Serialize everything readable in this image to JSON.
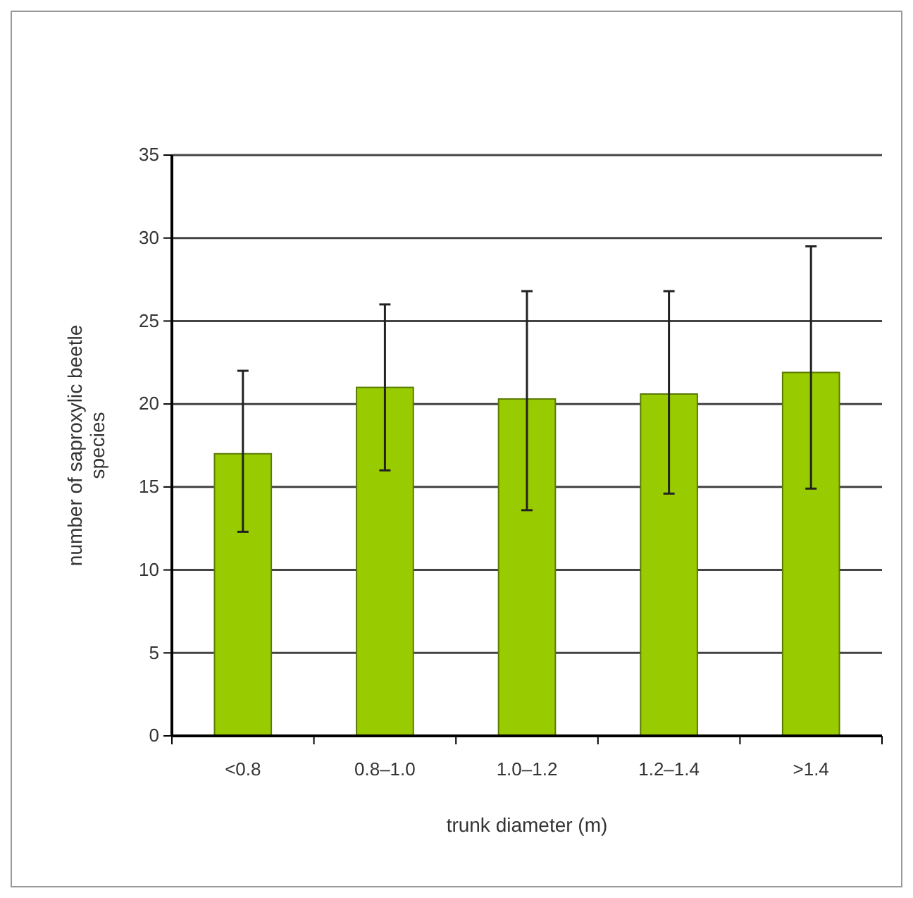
{
  "chart_data": {
    "type": "bar",
    "xlabel": "trunk diameter (m)",
    "ylabel": "number of saproxylic beetle species",
    "categories": [
      "<0.8",
      "0.8–1.0",
      "1.0–1.2",
      "1.2–1.4",
      ">1.4"
    ],
    "values": [
      17.0,
      21.0,
      20.3,
      20.6,
      21.9
    ],
    "color": "#99cc00",
    "errors": [
      [
        12.3,
        22
      ],
      [
        16,
        26
      ],
      [
        13.6,
        26.8
      ],
      [
        14.6,
        26.8
      ],
      [
        14.9,
        29.5
      ]
    ],
    "ylim": [
      0,
      35
    ],
    "yticks": [
      0,
      5,
      10,
      15,
      20,
      25,
      30,
      35
    ],
    "grid": "y"
  }
}
